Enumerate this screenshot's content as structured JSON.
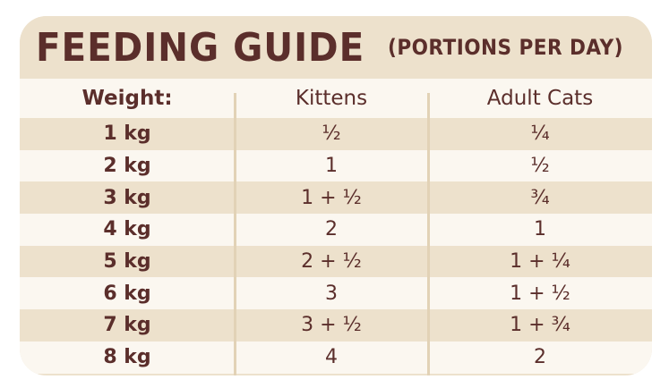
{
  "title": {
    "main": "FEEDING GUIDE",
    "sub": "(PORTIONS PER DAY)"
  },
  "table": {
    "headers": {
      "weight": "Weight:",
      "kittens": "Kittens",
      "adult": "Adult Cats"
    },
    "rows": [
      {
        "weight": "1 kg",
        "kittens": "½",
        "adult": "¼"
      },
      {
        "weight": "2 kg",
        "kittens": "1",
        "adult": "½"
      },
      {
        "weight": "3 kg",
        "kittens": "1 + ½",
        "adult": "¾"
      },
      {
        "weight": "4 kg",
        "kittens": "2",
        "adult": "1"
      },
      {
        "weight": "5 kg",
        "kittens": "2 + ½",
        "adult": "1 + ¼"
      },
      {
        "weight": "6 kg",
        "kittens": "3",
        "adult": "1 + ½"
      },
      {
        "weight": "7 kg",
        "kittens": "3 + ½",
        "adult": "1 + ¾"
      },
      {
        "weight": "8 kg",
        "kittens": "4",
        "adult": "2"
      }
    ]
  },
  "colors": {
    "text": "#5b2e2b",
    "band_dark": "#ede1cc",
    "band_light": "#fbf7f0"
  }
}
